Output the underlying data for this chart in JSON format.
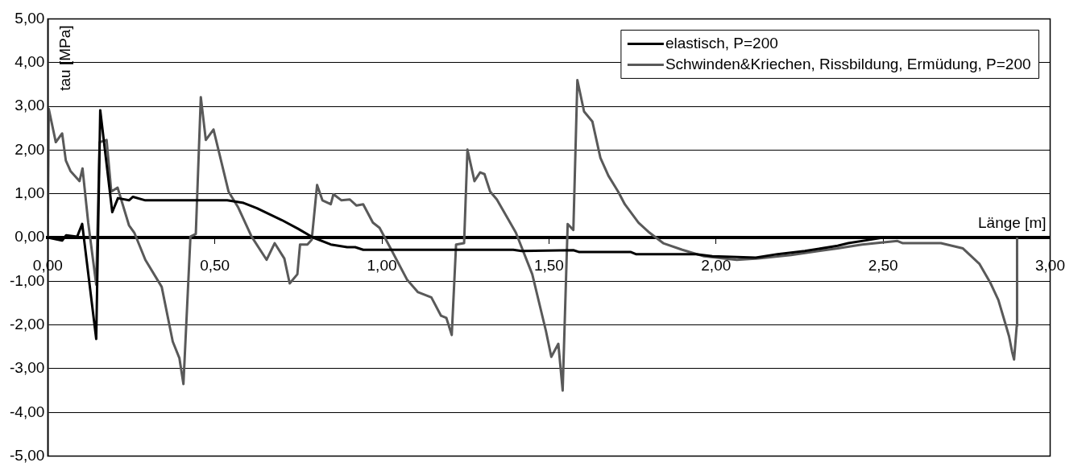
{
  "chart_data": {
    "type": "line",
    "xlabel": "Länge [m]",
    "ylabel": "tau [MPa]",
    "xlim": [
      0,
      3
    ],
    "xticks": [
      {
        "value": 0,
        "label": "0,00"
      },
      {
        "value": 0.5,
        "label": "0,50"
      },
      {
        "value": 1,
        "label": "1,00"
      },
      {
        "value": 1.5,
        "label": "1,50"
      },
      {
        "value": 2,
        "label": "2,00"
      },
      {
        "value": 2.5,
        "label": "2,50"
      },
      {
        "value": 3,
        "label": "3,00"
      }
    ],
    "ylim": [
      -5,
      5
    ],
    "yticks": [
      {
        "value": -5,
        "label": "-5,00"
      },
      {
        "value": -4,
        "label": "-4,00"
      },
      {
        "value": -3,
        "label": "-3,00"
      },
      {
        "value": -2,
        "label": "-2,00"
      },
      {
        "value": -1,
        "label": "-1,00"
      },
      {
        "value": 0,
        "label": "0,00"
      },
      {
        "value": 1,
        "label": "1,00"
      },
      {
        "value": 2,
        "label": "2,00"
      },
      {
        "value": 3,
        "label": "3,00"
      },
      {
        "value": 4,
        "label": "4,00"
      },
      {
        "value": 5,
        "label": "5,00"
      }
    ],
    "grid": "y",
    "legend": "top right",
    "marker": "none",
    "line_style": "solid",
    "series": [
      {
        "name": "elastisch, P=200",
        "color": "#000000",
        "x": [
          0,
          0.043,
          0.055,
          0.088,
          0.103,
          0.145,
          0.157,
          0.193,
          0.21,
          0.243,
          0.255,
          0.292,
          0.537,
          0.586,
          0.626,
          0.7,
          0.749,
          0.794,
          0.847,
          0.896,
          0.92,
          0.944,
          1.393,
          1.418,
          1.573,
          1.589,
          1.744,
          1.76,
          1.94,
          1.989,
          2.119,
          2.184,
          2.266,
          2.364,
          2.396,
          2.478,
          2.5
        ],
        "values": [
          0,
          -0.07,
          0.05,
          0.02,
          0.31,
          -2.32,
          2.91,
          0.58,
          0.9,
          0.85,
          0.93,
          0.85,
          0.85,
          0.79,
          0.67,
          0.4,
          0.2,
          0,
          -0.16,
          -0.22,
          -0.22,
          -0.28,
          -0.28,
          -0.31,
          -0.29,
          -0.33,
          -0.33,
          -0.38,
          -0.38,
          -0.43,
          -0.46,
          -0.38,
          -0.31,
          -0.19,
          -0.13,
          -0.03,
          0
        ]
      },
      {
        "name": "Schwinden&Kriechen, Rissbildung, Ermüdung, P=200",
        "color": "#595959",
        "x": [
          0,
          0.003,
          0.024,
          0.043,
          0.054,
          0.068,
          0.095,
          0.104,
          0.121,
          0.145,
          0.155,
          0.176,
          0.19,
          0.209,
          0.243,
          0.259,
          0.292,
          0.341,
          0.374,
          0.394,
          0.406,
          0.427,
          0.443,
          0.458,
          0.473,
          0.496,
          0.541,
          0.569,
          0.61,
          0.655,
          0.679,
          0.708,
          0.724,
          0.747,
          0.755,
          0.777,
          0.79,
          0.806,
          0.822,
          0.847,
          0.855,
          0.879,
          0.904,
          0.924,
          0.944,
          0.973,
          0.993,
          1.026,
          1.075,
          1.108,
          1.148,
          1.177,
          1.193,
          1.209,
          1.222,
          1.246,
          1.256,
          1.277,
          1.294,
          1.307,
          1.324,
          1.344,
          1.401,
          1.45,
          1.491,
          1.507,
          1.528,
          1.541,
          1.556,
          1.573,
          1.585,
          1.605,
          1.63,
          1.654,
          1.678,
          1.707,
          1.727,
          1.768,
          1.801,
          1.842,
          1.899,
          1.964,
          2.062,
          2.127,
          2.225,
          2.307,
          2.364,
          2.437,
          2.543,
          2.559,
          2.673,
          2.739,
          2.788,
          2.82,
          2.845,
          2.861,
          2.877,
          2.886,
          2.892,
          2.9,
          2.901
        ],
        "values": [
          0,
          2.94,
          2.18,
          2.38,
          1.76,
          1.52,
          1.29,
          1.58,
          0.34,
          -1.08,
          2.18,
          2.23,
          1.05,
          1.14,
          0.28,
          0.11,
          -0.51,
          -1.13,
          -2.38,
          -2.76,
          -3.35,
          0.02,
          0.08,
          3.21,
          2.23,
          2.47,
          1.05,
          0.7,
          0.02,
          -0.51,
          -0.13,
          -0.48,
          -1.05,
          -0.84,
          -0.16,
          -0.16,
          -0.05,
          1.2,
          0.85,
          0.76,
          0.99,
          0.85,
          0.87,
          0.73,
          0.76,
          0.34,
          0.22,
          -0.25,
          -0.96,
          -1.25,
          -1.37,
          -1.79,
          -1.84,
          -2.23,
          -0.16,
          -0.13,
          2.01,
          1.29,
          1.49,
          1.45,
          1.05,
          0.87,
          0.11,
          -0.84,
          -2.14,
          -2.73,
          -2.43,
          -3.5,
          0.31,
          0.17,
          3.6,
          2.88,
          2.65,
          1.82,
          1.41,
          1.05,
          0.76,
          0.34,
          0.11,
          -0.13,
          -0.28,
          -0.43,
          -0.51,
          -0.48,
          -0.4,
          -0.31,
          -0.25,
          -0.16,
          -0.08,
          -0.13,
          -0.13,
          -0.25,
          -0.6,
          -1.02,
          -1.43,
          -1.84,
          -2.26,
          -2.61,
          -2.79,
          -2.02,
          0
        ]
      }
    ]
  }
}
